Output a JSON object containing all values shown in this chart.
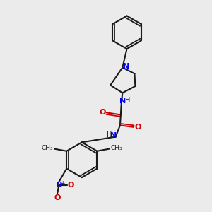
{
  "bg_color": "#ebebeb",
  "bond_color": "#1a1a1a",
  "N_color": "#0000ee",
  "O_color": "#cc0000",
  "lw": 1.5,
  "figsize": [
    3.0,
    3.0
  ],
  "dpi": 100,
  "xlim": [
    0.15,
    0.85
  ],
  "ylim": [
    0.02,
    0.98
  ]
}
